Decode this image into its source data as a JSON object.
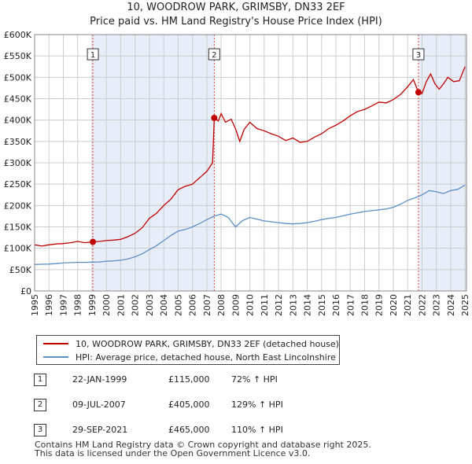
{
  "header": {
    "title": "10, WOODROW PARK, GRIMSBY, DN33 2EF",
    "subtitle": "Price paid vs. HM Land Registry's House Price Index (HPI)"
  },
  "colors": {
    "property": "#c00000",
    "hpi": "#5b8fc9",
    "shade": "#e8eef9",
    "marker_line": "#dd4444",
    "grid": "#cccccc"
  },
  "chart_data": {
    "type": "line",
    "title": "10, WOODROW PARK, GRIMSBY, DN33 2EF",
    "xlabel": "",
    "ylabel": "",
    "xlim": [
      1995,
      2025.1
    ],
    "ylim": [
      0,
      600000
    ],
    "x_ticks": [
      1995,
      1996,
      1997,
      1998,
      1999,
      2000,
      2001,
      2002,
      2003,
      2004,
      2005,
      2006,
      2007,
      2008,
      2009,
      2010,
      2011,
      2012,
      2013,
      2014,
      2015,
      2016,
      2017,
      2018,
      2019,
      2020,
      2021,
      2022,
      2023,
      2024,
      2025
    ],
    "y_ticks": [
      {
        "value": 0,
        "label": "£0"
      },
      {
        "value": 50000,
        "label": "£50K"
      },
      {
        "value": 100000,
        "label": "£100K"
      },
      {
        "value": 150000,
        "label": "£150K"
      },
      {
        "value": 200000,
        "label": "£200K"
      },
      {
        "value": 250000,
        "label": "£250K"
      },
      {
        "value": 300000,
        "label": "£300K"
      },
      {
        "value": 350000,
        "label": "£350K"
      },
      {
        "value": 400000,
        "label": "£400K"
      },
      {
        "value": 450000,
        "label": "£450K"
      },
      {
        "value": 500000,
        "label": "£500K"
      },
      {
        "value": 550000,
        "label": "£550K"
      },
      {
        "value": 600000,
        "label": "£600K"
      }
    ],
    "grid": true,
    "shaded_ranges": [
      [
        1999.06,
        2007.52
      ],
      [
        2021.75,
        2025.1
      ]
    ],
    "series": [
      {
        "name": "10, WOODROW PARK, GRIMSBY, DN33 2EF (detached house)",
        "color": "#c00000",
        "points": [
          [
            1995.0,
            108000
          ],
          [
            1995.5,
            105000
          ],
          [
            1996.0,
            108000
          ],
          [
            1996.5,
            110000
          ],
          [
            1997.0,
            111000
          ],
          [
            1997.5,
            113000
          ],
          [
            1998.0,
            116000
          ],
          [
            1998.5,
            113000
          ],
          [
            1999.06,
            115000
          ],
          [
            1999.5,
            116000
          ],
          [
            2000.0,
            118000
          ],
          [
            2000.5,
            119000
          ],
          [
            2001.0,
            121000
          ],
          [
            2001.5,
            127000
          ],
          [
            2002.0,
            135000
          ],
          [
            2002.5,
            148000
          ],
          [
            2003.0,
            170000
          ],
          [
            2003.5,
            182000
          ],
          [
            2004.0,
            200000
          ],
          [
            2004.5,
            215000
          ],
          [
            2005.0,
            237000
          ],
          [
            2005.5,
            245000
          ],
          [
            2006.0,
            250000
          ],
          [
            2006.5,
            265000
          ],
          [
            2007.0,
            280000
          ],
          [
            2007.4,
            300000
          ],
          [
            2007.52,
            405000
          ],
          [
            2007.8,
            398000
          ],
          [
            2008.0,
            415000
          ],
          [
            2008.3,
            395000
          ],
          [
            2008.7,
            402000
          ],
          [
            2009.0,
            380000
          ],
          [
            2009.3,
            350000
          ],
          [
            2009.6,
            378000
          ],
          [
            2010.0,
            395000
          ],
          [
            2010.5,
            380000
          ],
          [
            2011.0,
            375000
          ],
          [
            2011.5,
            368000
          ],
          [
            2012.0,
            362000
          ],
          [
            2012.5,
            352000
          ],
          [
            2013.0,
            358000
          ],
          [
            2013.5,
            348000
          ],
          [
            2014.0,
            350000
          ],
          [
            2014.5,
            360000
          ],
          [
            2015.0,
            368000
          ],
          [
            2015.5,
            380000
          ],
          [
            2016.0,
            388000
          ],
          [
            2016.5,
            398000
          ],
          [
            2017.0,
            410000
          ],
          [
            2017.5,
            420000
          ],
          [
            2018.0,
            425000
          ],
          [
            2018.5,
            433000
          ],
          [
            2019.0,
            442000
          ],
          [
            2019.5,
            440000
          ],
          [
            2020.0,
            448000
          ],
          [
            2020.5,
            460000
          ],
          [
            2021.0,
            478000
          ],
          [
            2021.4,
            495000
          ],
          [
            2021.75,
            465000
          ],
          [
            2022.0,
            462000
          ],
          [
            2022.3,
            490000
          ],
          [
            2022.6,
            508000
          ],
          [
            2022.9,
            485000
          ],
          [
            2023.2,
            472000
          ],
          [
            2023.5,
            485000
          ],
          [
            2023.8,
            500000
          ],
          [
            2024.2,
            490000
          ],
          [
            2024.6,
            492000
          ],
          [
            2025.0,
            525000
          ]
        ]
      },
      {
        "name": "HPI: Average price, detached house, North East Lincolnshire",
        "color": "#5b8fc9",
        "points": [
          [
            1995.0,
            62000
          ],
          [
            1995.5,
            62500
          ],
          [
            1996.0,
            63000
          ],
          [
            1996.5,
            64000
          ],
          [
            1997.0,
            65500
          ],
          [
            1997.5,
            66500
          ],
          [
            1998.0,
            67000
          ],
          [
            1998.5,
            67000
          ],
          [
            1999.0,
            67500
          ],
          [
            1999.5,
            68000
          ],
          [
            2000.0,
            69500
          ],
          [
            2000.5,
            70500
          ],
          [
            2001.0,
            72000
          ],
          [
            2001.5,
            75000
          ],
          [
            2002.0,
            80000
          ],
          [
            2002.5,
            87000
          ],
          [
            2003.0,
            97000
          ],
          [
            2003.5,
            106000
          ],
          [
            2004.0,
            118000
          ],
          [
            2004.5,
            130000
          ],
          [
            2005.0,
            140000
          ],
          [
            2005.5,
            144000
          ],
          [
            2006.0,
            150000
          ],
          [
            2006.5,
            158000
          ],
          [
            2007.0,
            167000
          ],
          [
            2007.5,
            175000
          ],
          [
            2008.0,
            180000
          ],
          [
            2008.5,
            172000
          ],
          [
            2009.0,
            150000
          ],
          [
            2009.5,
            165000
          ],
          [
            2010.0,
            172000
          ],
          [
            2010.5,
            168000
          ],
          [
            2011.0,
            164000
          ],
          [
            2011.5,
            162000
          ],
          [
            2012.0,
            160000
          ],
          [
            2012.5,
            158000
          ],
          [
            2013.0,
            157000
          ],
          [
            2013.5,
            158000
          ],
          [
            2014.0,
            160000
          ],
          [
            2014.5,
            163000
          ],
          [
            2015.0,
            167000
          ],
          [
            2015.5,
            170000
          ],
          [
            2016.0,
            172000
          ],
          [
            2016.5,
            176000
          ],
          [
            2017.0,
            180000
          ],
          [
            2017.5,
            183000
          ],
          [
            2018.0,
            186000
          ],
          [
            2018.5,
            188000
          ],
          [
            2019.0,
            190000
          ],
          [
            2019.5,
            192000
          ],
          [
            2020.0,
            196000
          ],
          [
            2020.5,
            203000
          ],
          [
            2021.0,
            212000
          ],
          [
            2021.5,
            218000
          ],
          [
            2022.0,
            225000
          ],
          [
            2022.5,
            235000
          ],
          [
            2023.0,
            232000
          ],
          [
            2023.5,
            228000
          ],
          [
            2024.0,
            235000
          ],
          [
            2024.5,
            238000
          ],
          [
            2025.0,
            248000
          ]
        ]
      }
    ],
    "sales": [
      {
        "label": "1",
        "x": 1999.06,
        "y": 115000
      },
      {
        "label": "2",
        "x": 2007.52,
        "y": 405000
      },
      {
        "label": "3",
        "x": 2021.75,
        "y": 465000
      }
    ]
  },
  "legend": {
    "property_label": "10, WOODROW PARK, GRIMSBY, DN33 2EF (detached house)",
    "hpi_label": "HPI: Average price, detached house, North East Lincolnshire"
  },
  "sales_table": [
    {
      "num": "1",
      "date": "22-JAN-1999",
      "price": "£115,000",
      "hpi": "72% ↑ HPI"
    },
    {
      "num": "2",
      "date": "09-JUL-2007",
      "price": "£405,000",
      "hpi": "129% ↑ HPI"
    },
    {
      "num": "3",
      "date": "29-SEP-2021",
      "price": "£465,000",
      "hpi": "110% ↑ HPI"
    }
  ],
  "footer": {
    "line1": "Contains HM Land Registry data © Crown copyright and database right 2025.",
    "line2": "This data is licensed under the Open Government Licence v3.0."
  }
}
